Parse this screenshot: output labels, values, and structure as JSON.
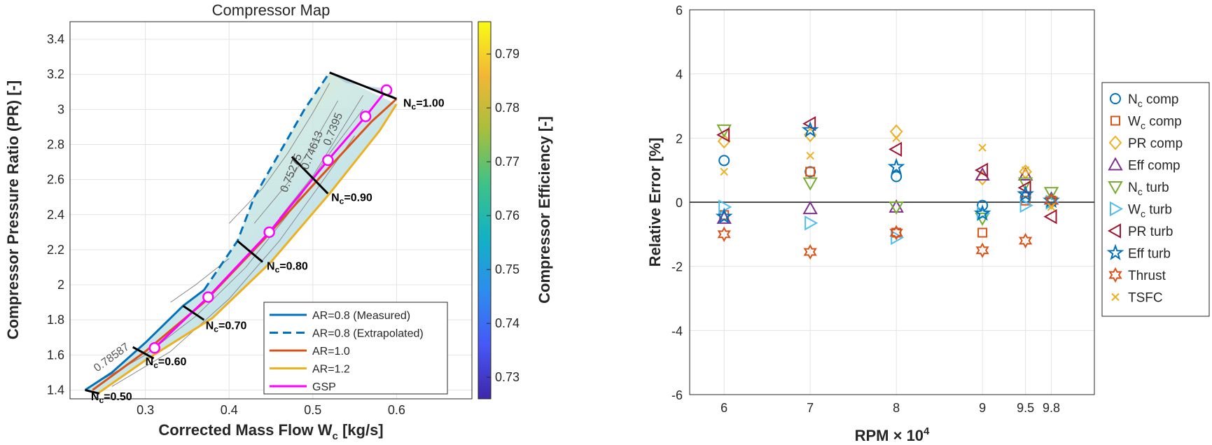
{
  "chart_data": [
    {
      "type": "line",
      "title": "Compressor Map",
      "xlabel": "Corrected Mass Flow W",
      "xlabel_sub": "c",
      "xlabel_unit": " [kg/s]",
      "ylabel": "Compressor Pressure Ratio (PR) [-]",
      "xlim": [
        0.21,
        0.69
      ],
      "ylim": [
        1.35,
        3.5
      ],
      "xticks": [
        0.3,
        0.4,
        0.5,
        0.6
      ],
      "xtick_labels": [
        "0.3",
        "0.4",
        "0.5",
        "0.6"
      ],
      "yticks": [
        1.4,
        1.6,
        1.8,
        2.0,
        2.2,
        2.4,
        2.6,
        2.8,
        3.0,
        3.2,
        3.4
      ],
      "ytick_labels": [
        "1.4",
        "1.6",
        "1.8",
        "2",
        "2.2",
        "2.4",
        "2.6",
        "2.8",
        "3",
        "3.2",
        "3.4"
      ],
      "grid": true,
      "colorbar": {
        "label": "Compressor Efficiency [-]",
        "range": [
          0.726,
          0.796
        ],
        "ticks": [
          0.73,
          0.74,
          0.75,
          0.76,
          0.77,
          0.78,
          0.79
        ],
        "tick_labels": [
          "0.73",
          "0.74",
          "0.75",
          "0.76",
          "0.77",
          "0.78",
          "0.79"
        ],
        "colors": [
          "#3e26a8",
          "#4658f8",
          "#2d8ded",
          "#12b2c4",
          "#3fc286",
          "#a7bf3d",
          "#f3b636",
          "#f9fb15"
        ]
      },
      "series": [
        {
          "name": "AR=0.8 (Measured)",
          "color": "#0072bd",
          "dash": false,
          "x": [
            0.228,
            0.26,
            0.3,
            0.345,
            0.37
          ],
          "y": [
            1.4,
            1.5,
            1.67,
            1.88,
            1.97
          ]
        },
        {
          "name": "AR=0.8 (Extrapolated)",
          "color": "#0072bd",
          "dash": true,
          "x": [
            0.37,
            0.41,
            0.43,
            0.46,
            0.49,
            0.52
          ],
          "y": [
            1.97,
            2.25,
            2.5,
            2.75,
            3.0,
            3.21
          ]
        },
        {
          "name": "AR=1.0",
          "color": "#d95319",
          "dash": false,
          "x": [
            0.237,
            0.3,
            0.37,
            0.44,
            0.51,
            0.57,
            0.6
          ],
          "y": [
            1.4,
            1.62,
            1.9,
            2.25,
            2.62,
            2.93,
            3.06
          ]
        },
        {
          "name": "AR=1.2",
          "color": "#edb120",
          "dash": false,
          "x": [
            0.243,
            0.3,
            0.38,
            0.45,
            0.52,
            0.58,
            0.6
          ],
          "y": [
            1.38,
            1.57,
            1.81,
            2.13,
            2.52,
            2.88,
            3.03
          ]
        },
        {
          "name": "GSP",
          "color": "#ff00ff",
          "dash": false,
          "markers": true,
          "x": [
            0.311,
            0.375,
            0.448,
            0.518,
            0.563,
            0.588
          ],
          "y": [
            1.64,
            1.93,
            2.3,
            2.71,
            2.96,
            3.11
          ]
        }
      ],
      "speed_lines": [
        {
          "label": "N",
          "sub": "c",
          "value": "=0.50",
          "x": [
            0.228,
            0.245
          ],
          "y": [
            1.4,
            1.38
          ],
          "lx": 0.235,
          "ly": 1.365
        },
        {
          "label": "N",
          "sub": "c",
          "value": "=0.60",
          "x": [
            0.285,
            0.31
          ],
          "y": [
            1.645,
            1.58
          ],
          "lx": 0.3,
          "ly": 1.565
        },
        {
          "label": "N",
          "sub": "c",
          "value": "=0.70",
          "x": [
            0.345,
            0.37
          ],
          "y": [
            1.88,
            1.8
          ],
          "lx": 0.372,
          "ly": 1.77
        },
        {
          "label": "N",
          "sub": "c",
          "value": "=0.80",
          "x": [
            0.41,
            0.44
          ],
          "y": [
            2.25,
            2.13
          ],
          "lx": 0.445,
          "ly": 2.11
        },
        {
          "label": "N",
          "sub": "c",
          "value": "=0.90",
          "x": [
            0.475,
            0.518
          ],
          "y": [
            2.73,
            2.52
          ],
          "lx": 0.522,
          "ly": 2.5
        },
        {
          "label": "N",
          "sub": "c",
          "value": "=1.00",
          "x": [
            0.52,
            0.6
          ],
          "y": [
            3.21,
            3.06
          ],
          "lx": 0.608,
          "ly": 3.04
        }
      ],
      "contour_labels": [
        {
          "text": "0.78587",
          "x": 0.262,
          "y": 1.57,
          "angle": -36
        },
        {
          "text": "0.75275",
          "x": 0.478,
          "y": 2.63,
          "angle": -68
        },
        {
          "text": "0.74613",
          "x": 0.503,
          "y": 2.76,
          "angle": -68
        },
        {
          "text": "0.7395",
          "x": 0.528,
          "y": 2.88,
          "angle": -68
        }
      ]
    },
    {
      "type": "scatter",
      "xlabel": "RPM",
      "xlabel_times": " × 10",
      "xlabel_exp": "4",
      "ylabel": "Relative Error [%]",
      "xlim": [
        5.6,
        10.3
      ],
      "ylim": [
        -6,
        6
      ],
      "xticks": [
        6,
        7,
        8,
        9,
        9.5,
        9.8
      ],
      "xtick_labels": [
        "6",
        "7",
        "8",
        "9",
        "9.5",
        "9.8"
      ],
      "yticks": [
        -6,
        -4,
        -2,
        0,
        2,
        4,
        6
      ],
      "ytick_labels": [
        "-6",
        "-4",
        "-2",
        "0",
        "2",
        "4",
        "6"
      ],
      "grid": true,
      "legend": "outside-right",
      "series": [
        {
          "name": "N",
          "sub": "c",
          "rest": " comp",
          "marker": "circle",
          "color": "#0072bd",
          "x": [
            6,
            7,
            8,
            9,
            9.5,
            9.8
          ],
          "y": [
            1.3,
            0.95,
            0.8,
            -0.1,
            0.15,
            0.05
          ]
        },
        {
          "name": "W",
          "sub": "c",
          "rest": " comp",
          "marker": "square",
          "color": "#d95319",
          "x": [
            6,
            7,
            8,
            9,
            9.5,
            9.8
          ],
          "y": [
            -0.4,
            0.95,
            -0.95,
            -0.95,
            0.05,
            0.05
          ]
        },
        {
          "name": "PR comp",
          "marker": "diamond",
          "color": "#edb120",
          "x": [
            6,
            7,
            8,
            9,
            9.5,
            9.8
          ],
          "y": [
            1.9,
            2.1,
            2.2,
            0.75,
            0.95,
            0.0
          ]
        },
        {
          "name": "Eff comp",
          "marker": "triangle-up",
          "color": "#7e2f8e",
          "x": [
            6,
            7,
            8,
            9,
            9.5,
            9.8
          ],
          "y": [
            -0.5,
            -0.2,
            -0.15,
            0.85,
            0.85,
            0.1
          ]
        },
        {
          "name": "N",
          "sub": "c",
          "rest": " turb",
          "marker": "triangle-down",
          "color": "#77ac30",
          "x": [
            6,
            7,
            8,
            9,
            9.5,
            9.8
          ],
          "y": [
            2.25,
            0.6,
            -0.15,
            -0.5,
            0.6,
            0.3
          ]
        },
        {
          "name": "W",
          "sub": "c",
          "rest": " turb",
          "marker": "triangle-right",
          "color": "#4dbeee",
          "x": [
            6,
            7,
            8,
            9,
            9.5,
            9.8
          ],
          "y": [
            -0.15,
            -0.65,
            -1.1,
            -0.35,
            -0.1,
            0.0
          ]
        },
        {
          "name": "PR turb",
          "marker": "triangle-left",
          "color": "#a2142f",
          "x": [
            6,
            7,
            8,
            9,
            9.5,
            9.8
          ],
          "y": [
            2.1,
            2.45,
            1.65,
            1.0,
            0.45,
            -0.45
          ]
        },
        {
          "name": "Eff turb",
          "marker": "star",
          "color": "#0072bd",
          "x": [
            6,
            7,
            8,
            9,
            9.5,
            9.8
          ],
          "y": [
            -0.45,
            2.25,
            1.1,
            -0.35,
            0.25,
            0.05
          ]
        },
        {
          "name": "Thrust",
          "marker": "hexagram",
          "color": "#d95319",
          "x": [
            6,
            7,
            8,
            9,
            9.5,
            9.8
          ],
          "y": [
            -1.0,
            -1.55,
            -0.95,
            -1.5,
            -1.2,
            0.05
          ]
        },
        {
          "name": "TSFC",
          "marker": "x",
          "color": "#edb120",
          "x": [
            6,
            7,
            8,
            9,
            9.5,
            9.8
          ],
          "y": [
            0.95,
            1.45,
            2.0,
            1.7,
            1.0,
            -0.15
          ]
        }
      ]
    }
  ]
}
